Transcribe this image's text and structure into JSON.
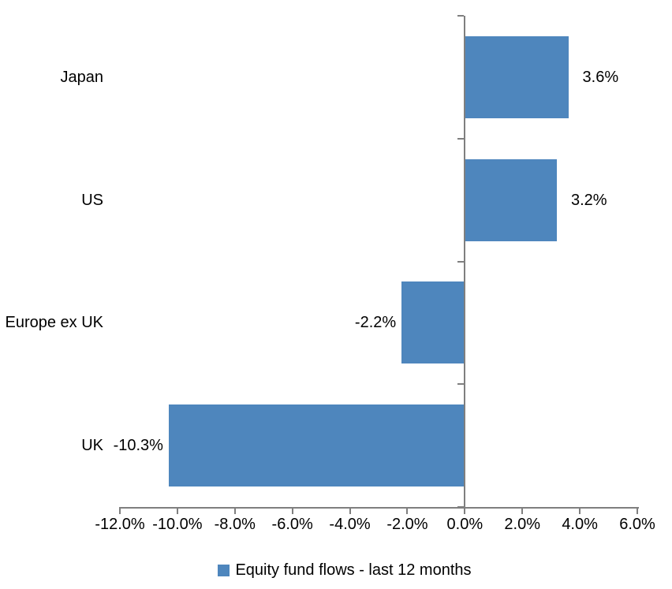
{
  "chart_data": {
    "type": "bar",
    "orientation": "horizontal",
    "title": "",
    "categories": [
      "Japan",
      "US",
      "Europe ex UK",
      "UK"
    ],
    "series": [
      {
        "name": "Equity fund flows - last 12 months",
        "values": [
          3.6,
          3.2,
          -2.2,
          -10.3
        ],
        "data_labels": [
          "3.6%",
          "3.2%",
          "-2.2%",
          "-10.3%"
        ]
      }
    ],
    "xlabel": "",
    "ylabel": "",
    "xlim": [
      -12,
      6
    ],
    "x_tick_step": 2,
    "x_tick_labels": [
      "-12.0%",
      "-10.0%",
      "-8.0%",
      "-6.0%",
      "-4.0%",
      "-2.0%",
      "0.0%",
      "2.0%",
      "4.0%",
      "6.0%"
    ],
    "grid": false,
    "legend": {
      "position": "bottom",
      "label": "Equity fund flows - last 12 months",
      "marker": "square-icon"
    },
    "colors": {
      "bar": "#4E86BD",
      "axis": "#7F7F7F",
      "text": "#000000",
      "background": "#FFFFFF"
    }
  }
}
